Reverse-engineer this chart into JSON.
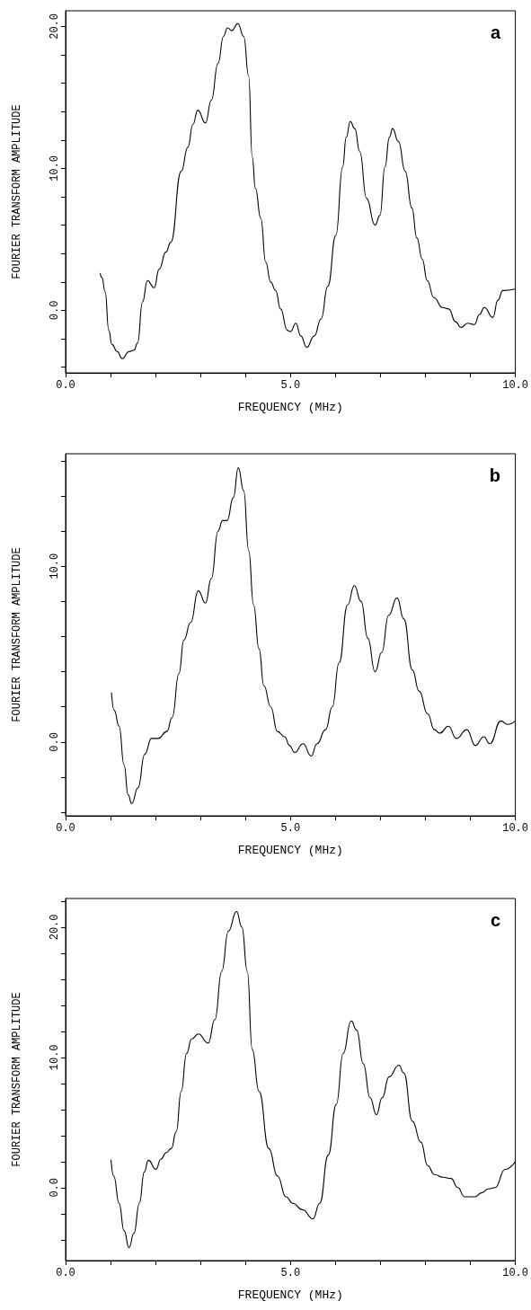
{
  "chart_data": [
    {
      "type": "line",
      "xlabel": "FREQUENCY (MHz)",
      "ylabel": "FOURIER TRANSFORM AMPLITUDE",
      "annotations": [
        "a"
      ],
      "marker": "none",
      "line_style": "solid",
      "xlim": [
        0,
        10
      ],
      "ylim": [
        -4.4,
        21.1
      ],
      "xticks": [
        {
          "value": 0,
          "label": "0.0"
        },
        {
          "value": 1,
          "label": null
        },
        {
          "value": 2,
          "label": null
        },
        {
          "value": 3,
          "label": null
        },
        {
          "value": 4,
          "label": null
        },
        {
          "value": 5,
          "label": "5.0"
        },
        {
          "value": 6,
          "label": null
        },
        {
          "value": 7,
          "label": null
        },
        {
          "value": 8,
          "label": null
        },
        {
          "value": 9,
          "label": null
        },
        {
          "value": 10,
          "label": "10.0"
        }
      ],
      "yticks": [
        {
          "value": -4,
          "label": null
        },
        {
          "value": -2,
          "label": null
        },
        {
          "value": 0,
          "label": "0.0"
        },
        {
          "value": 2,
          "label": null
        },
        {
          "value": 4,
          "label": null
        },
        {
          "value": 6,
          "label": null
        },
        {
          "value": 8,
          "label": null
        },
        {
          "value": 10,
          "label": "10.0"
        },
        {
          "value": 12,
          "label": null
        },
        {
          "value": 14,
          "label": null
        },
        {
          "value": 16,
          "label": null
        },
        {
          "value": 18,
          "label": null
        },
        {
          "value": 20,
          "label": "20.0"
        }
      ],
      "series": [
        {
          "color": "#000000",
          "x": [
            0.77,
            0.81,
            0.88,
            0.96,
            1.03,
            1.15,
            1.26,
            1.41,
            1.52,
            1.6,
            1.71,
            1.82,
            1.97,
            2.08,
            2.23,
            2.34,
            2.57,
            2.72,
            2.83,
            2.94,
            3.11,
            3.24,
            3.39,
            3.51,
            3.6,
            3.69,
            3.83,
            3.96,
            4.07,
            4.15,
            4.22,
            4.34,
            4.45,
            4.56,
            4.67,
            4.78,
            4.93,
            5.0,
            5.12,
            5.23,
            5.36,
            5.53,
            5.68,
            5.83,
            6.01,
            6.16,
            6.24,
            6.33,
            6.43,
            6.54,
            6.69,
            6.88,
            6.99,
            7.1,
            7.2,
            7.27,
            7.4,
            7.55,
            7.7,
            7.81,
            7.93,
            8.04,
            8.19,
            8.38,
            8.52,
            8.67,
            8.79,
            8.94,
            9.09,
            9.2,
            9.31,
            9.5,
            9.61,
            9.72,
            9.99
          ],
          "values": [
            2.6,
            2.3,
            1.3,
            -1.4,
            -2.4,
            -2.9,
            -3.4,
            -2.9,
            -2.8,
            -2.3,
            0.6,
            2.1,
            1.6,
            2.9,
            4.1,
            4.8,
            9.8,
            11.5,
            13.1,
            14.1,
            13.2,
            14.8,
            17.4,
            19.3,
            19.9,
            19.7,
            20.2,
            19.3,
            16.5,
            10.8,
            8.6,
            6.5,
            3.4,
            2.0,
            1.4,
            0.1,
            -1.4,
            -1.5,
            -0.9,
            -1.8,
            -2.6,
            -1.8,
            -0.6,
            1.7,
            5.3,
            10.1,
            12.2,
            13.3,
            12.8,
            11.2,
            7.9,
            6.0,
            6.7,
            10.1,
            12.2,
            12.8,
            11.9,
            9.8,
            7.2,
            5.1,
            3.6,
            2.1,
            0.9,
            0.2,
            0.1,
            -0.8,
            -1.2,
            -0.9,
            -1.0,
            -0.3,
            0.2,
            -0.5,
            0.7,
            1.4,
            1.5
          ]
        }
      ]
    },
    {
      "type": "line",
      "xlabel": "FREQUENCY (MHz)",
      "ylabel": "FOURIER TRANSFORM AMPLITUDE",
      "annotations": [
        "b"
      ],
      "marker": "none",
      "line_style": "solid",
      "xlim": [
        0,
        10
      ],
      "ylim": [
        -4.2,
        16.4
      ],
      "xticks": [
        {
          "value": 0,
          "label": "0.0"
        },
        {
          "value": 1,
          "label": null
        },
        {
          "value": 2,
          "label": null
        },
        {
          "value": 3,
          "label": null
        },
        {
          "value": 4,
          "label": null
        },
        {
          "value": 5,
          "label": "5.0"
        },
        {
          "value": 6,
          "label": null
        },
        {
          "value": 7,
          "label": null
        },
        {
          "value": 8,
          "label": null
        },
        {
          "value": 9,
          "label": null
        },
        {
          "value": 10,
          "label": "10.0"
        }
      ],
      "yticks": [
        {
          "value": -4,
          "label": null
        },
        {
          "value": -2,
          "label": null
        },
        {
          "value": 0,
          "label": "0.0"
        },
        {
          "value": 2,
          "label": null
        },
        {
          "value": 4,
          "label": null
        },
        {
          "value": 6,
          "label": null
        },
        {
          "value": 8,
          "label": null
        },
        {
          "value": 10,
          "label": "10.0"
        },
        {
          "value": 12,
          "label": null
        },
        {
          "value": 14,
          "label": null
        },
        {
          "value": 16,
          "label": null
        }
      ],
      "series": [
        {
          "color": "#000000",
          "x": [
            1.02,
            1.08,
            1.19,
            1.3,
            1.39,
            1.47,
            1.61,
            1.76,
            1.91,
            2.06,
            2.25,
            2.37,
            2.52,
            2.63,
            2.78,
            2.95,
            3.11,
            3.24,
            3.39,
            3.49,
            3.59,
            3.73,
            3.84,
            3.96,
            4.07,
            4.18,
            4.3,
            4.41,
            4.56,
            4.71,
            4.87,
            4.98,
            5.09,
            5.28,
            5.46,
            5.59,
            5.78,
            5.93,
            6.08,
            6.27,
            6.42,
            6.57,
            6.72,
            6.88,
            7.03,
            7.18,
            7.37,
            7.52,
            7.71,
            7.86,
            8.05,
            8.2,
            8.32,
            8.51,
            8.69,
            8.92,
            9.11,
            9.3,
            9.43,
            9.68,
            9.83,
            10.0
          ],
          "values": [
            2.8,
            1.8,
            0.9,
            -1.3,
            -3.0,
            -3.5,
            -2.6,
            -0.7,
            0.2,
            0.2,
            0.6,
            1.4,
            3.9,
            5.8,
            6.8,
            8.6,
            7.9,
            9.3,
            12.0,
            12.6,
            12.6,
            13.9,
            15.6,
            14.3,
            10.9,
            7.8,
            5.3,
            3.2,
            2.0,
            0.6,
            0.3,
            -0.2,
            -0.6,
            -0.1,
            -0.8,
            -0.1,
            0.7,
            2.0,
            4.5,
            7.8,
            8.9,
            8.0,
            5.9,
            4.0,
            5.1,
            7.2,
            8.2,
            7.0,
            4.1,
            2.9,
            1.6,
            0.7,
            0.5,
            0.9,
            0.2,
            0.7,
            -0.2,
            0.3,
            -0.1,
            1.2,
            1.0,
            1.2
          ]
        }
      ]
    },
    {
      "type": "line",
      "xlabel": "FREQUENCY (MHz)",
      "ylabel": "FOURIER TRANSFORM AMPLITUDE",
      "annotations": [
        "c"
      ],
      "marker": "none",
      "line_style": "solid",
      "xlim": [
        0,
        10
      ],
      "ylim": [
        -5.6,
        22.2
      ],
      "xticks": [
        {
          "value": 0,
          "label": "0.0"
        },
        {
          "value": 1,
          "label": null
        },
        {
          "value": 2,
          "label": null
        },
        {
          "value": 3,
          "label": null
        },
        {
          "value": 4,
          "label": null
        },
        {
          "value": 5,
          "label": "5.0"
        },
        {
          "value": 6,
          "label": null
        },
        {
          "value": 7,
          "label": null
        },
        {
          "value": 8,
          "label": null
        },
        {
          "value": 9,
          "label": null
        },
        {
          "value": 10,
          "label": "10.0"
        }
      ],
      "yticks": [
        {
          "value": -4,
          "label": null
        },
        {
          "value": -2,
          "label": null
        },
        {
          "value": 0,
          "label": "0.0"
        },
        {
          "value": 2,
          "label": null
        },
        {
          "value": 4,
          "label": null
        },
        {
          "value": 6,
          "label": null
        },
        {
          "value": 8,
          "label": null
        },
        {
          "value": 10,
          "label": "10.0"
        },
        {
          "value": 12,
          "label": null
        },
        {
          "value": 14,
          "label": null
        },
        {
          "value": 16,
          "label": null
        },
        {
          "value": 18,
          "label": null
        },
        {
          "value": 20,
          "label": "20.0"
        },
        {
          "value": 22,
          "label": null
        }
      ],
      "series": [
        {
          "color": "#000000",
          "x": [
            1.01,
            1.07,
            1.19,
            1.3,
            1.41,
            1.52,
            1.64,
            1.75,
            1.84,
            2.01,
            2.12,
            2.24,
            2.35,
            2.46,
            2.57,
            2.69,
            2.8,
            2.95,
            3.17,
            3.32,
            3.47,
            3.62,
            3.8,
            3.92,
            4.04,
            4.15,
            4.3,
            4.52,
            4.71,
            4.9,
            5.05,
            5.27,
            5.5,
            5.65,
            5.84,
            6.02,
            6.17,
            6.35,
            6.47,
            6.62,
            6.77,
            6.91,
            7.04,
            7.19,
            7.41,
            7.52,
            7.71,
            7.9,
            8.05,
            8.2,
            8.39,
            8.57,
            8.72,
            8.87,
            9.1,
            9.25,
            9.4,
            9.55,
            9.77,
            10.0
          ],
          "values": [
            2.1,
            0.9,
            -1.2,
            -3.3,
            -4.6,
            -3.5,
            -1.2,
            1.2,
            2.1,
            1.4,
            2.2,
            2.7,
            3.0,
            4.3,
            7.4,
            10.3,
            11.4,
            11.8,
            11.1,
            12.9,
            16.6,
            19.7,
            21.2,
            20.0,
            16.6,
            10.6,
            7.4,
            3.0,
            0.9,
            -0.7,
            -1.2,
            -1.7,
            -2.4,
            -1.2,
            2.5,
            6.4,
            10.3,
            12.8,
            12.1,
            9.5,
            6.9,
            5.6,
            6.9,
            8.5,
            9.4,
            8.8,
            5.1,
            3.5,
            1.7,
            1.0,
            0.8,
            0.7,
            0.0,
            -0.7,
            -0.7,
            -0.4,
            -0.1,
            0.0,
            1.4,
            2.0
          ]
        }
      ]
    }
  ]
}
